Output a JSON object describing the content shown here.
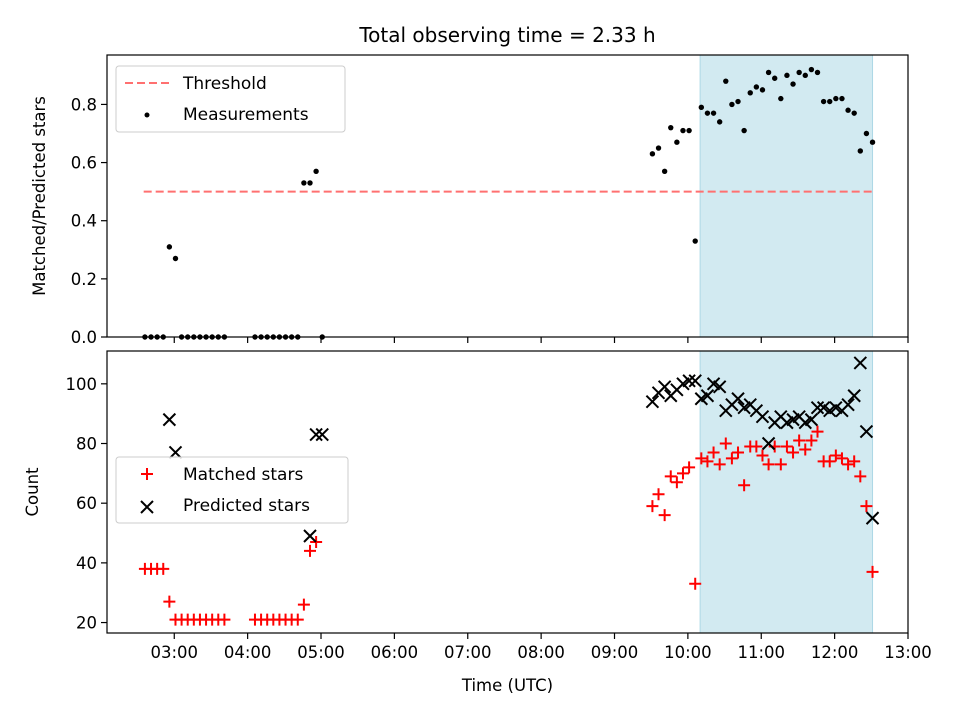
{
  "chart_data": {
    "title": "Total observing time = 2.33 h",
    "colors": {
      "threshold": "#ff7070",
      "measurements": "#000000",
      "matched": "#ff0000",
      "predicted": "#000000",
      "highlight": "#add8e6"
    },
    "xlabel": "Time (UTC)",
    "x_ticks": [
      "03:00",
      "04:00",
      "05:00",
      "06:00",
      "07:00",
      "08:00",
      "09:00",
      "10:00",
      "11:00",
      "12:00",
      "13:00"
    ],
    "xlim": [
      "02:05",
      "13:00"
    ],
    "highlight_span": [
      "10:10",
      "12:31"
    ],
    "panels": [
      {
        "type": "scatter",
        "ylabel": "Matched/Predicted stars",
        "ylim": [
          0,
          0.97
        ],
        "y_ticks": [
          "0.0",
          "0.2",
          "0.4",
          "0.6",
          "0.8"
        ],
        "y_tick_values": [
          0,
          0.2,
          0.4,
          0.6,
          0.8
        ],
        "legend_position": "top-left",
        "legend": [
          "Threshold",
          "Measurements"
        ],
        "series": [
          {
            "name": "Threshold",
            "kind": "dashed-line",
            "x": [
              "02:35",
              "12:31"
            ],
            "y": [
              0.5,
              0.5
            ]
          },
          {
            "name": "Measurements",
            "kind": "dot",
            "x": [
              "02:36",
              "02:41",
              "02:46",
              "02:51",
              "02:56",
              "03:01",
              "03:06",
              "03:11",
              "03:16",
              "03:21",
              "03:26",
              "03:31",
              "03:36",
              "03:41",
              "04:06",
              "04:11",
              "04:16",
              "04:21",
              "04:26",
              "04:31",
              "04:36",
              "04:41",
              "04:46",
              "04:51",
              "04:56",
              "05:01",
              "09:31",
              "09:36",
              "09:41",
              "09:46",
              "09:51",
              "09:56",
              "10:01",
              "10:06",
              "10:11",
              "10:16",
              "10:21",
              "10:26",
              "10:31",
              "10:36",
              "10:41",
              "10:46",
              "10:51",
              "10:56",
              "11:01",
              "11:06",
              "11:11",
              "11:16",
              "11:21",
              "11:26",
              "11:31",
              "11:36",
              "11:41",
              "11:46",
              "11:51",
              "11:56",
              "12:01",
              "12:06",
              "12:11",
              "12:16",
              "12:21",
              "12:26",
              "12:31"
            ],
            "y": [
              0,
              0,
              0,
              0,
              0.31,
              0.27,
              0,
              0,
              0,
              0,
              0,
              0,
              0,
              0,
              0,
              0,
              0,
              0,
              0,
              0,
              0,
              0,
              0.53,
              0.53,
              0.57,
              0,
              0.63,
              0.65,
              0.57,
              0.72,
              0.67,
              0.71,
              0.71,
              0.33,
              0.79,
              0.77,
              0.77,
              0.74,
              0.88,
              0.8,
              0.81,
              0.71,
              0.84,
              0.86,
              0.85,
              0.91,
              0.89,
              0.82,
              0.9,
              0.87,
              0.91,
              0.9,
              0.92,
              0.91,
              0.81,
              0.81,
              0.82,
              0.82,
              0.78,
              0.77,
              0.64,
              0.7,
              0.67
            ]
          }
        ]
      },
      {
        "type": "scatter",
        "ylabel": "Count",
        "ylim": [
          16.5,
          111
        ],
        "y_ticks": [
          "20",
          "40",
          "60",
          "80",
          "100"
        ],
        "y_tick_values": [
          20,
          40,
          60,
          80,
          100
        ],
        "legend_position": "center-left",
        "legend": [
          "Matched stars",
          "Predicted stars"
        ],
        "series": [
          {
            "name": "Matched stars",
            "kind": "plus",
            "x": [
              "02:36",
              "02:41",
              "02:46",
              "02:51",
              "02:56",
              "03:01",
              "03:06",
              "03:11",
              "03:16",
              "03:21",
              "03:26",
              "03:31",
              "03:36",
              "03:41",
              "04:06",
              "04:11",
              "04:16",
              "04:21",
              "04:26",
              "04:31",
              "04:36",
              "04:41",
              "04:46",
              "04:51",
              "04:56",
              "09:31",
              "09:36",
              "09:41",
              "09:46",
              "09:51",
              "09:56",
              "10:01",
              "10:06",
              "10:11",
              "10:16",
              "10:21",
              "10:26",
              "10:31",
              "10:36",
              "10:41",
              "10:46",
              "10:51",
              "10:56",
              "11:01",
              "11:06",
              "11:11",
              "11:16",
              "11:21",
              "11:26",
              "11:31",
              "11:36",
              "11:41",
              "11:46",
              "11:51",
              "11:56",
              "12:01",
              "12:06",
              "12:11",
              "12:16",
              "12:21",
              "12:26",
              "12:31"
            ],
            "y": [
              38,
              38,
              38,
              38,
              27,
              21,
              21,
              21,
              21,
              21,
              21,
              21,
              21,
              21,
              21,
              21,
              21,
              21,
              21,
              21,
              21,
              21,
              26,
              44,
              47,
              59,
              63,
              56,
              69,
              67,
              70,
              72,
              33,
              75,
              74,
              77,
              73,
              80,
              75,
              77,
              66,
              79,
              79,
              76,
              73,
              79,
              73,
              79,
              77,
              81,
              78,
              81,
              84,
              74,
              74,
              76,
              75,
              73,
              74,
              69,
              59,
              37
            ]
          },
          {
            "name": "Predicted stars",
            "kind": "x",
            "x": [
              "02:56",
              "03:01",
              "04:51",
              "04:56",
              "05:01",
              "09:31",
              "09:36",
              "09:41",
              "09:46",
              "09:51",
              "09:56",
              "10:01",
              "10:06",
              "10:11",
              "10:16",
              "10:21",
              "10:26",
              "10:31",
              "10:36",
              "10:41",
              "10:46",
              "10:51",
              "10:56",
              "11:01",
              "11:06",
              "11:11",
              "11:16",
              "11:21",
              "11:26",
              "11:31",
              "11:36",
              "11:41",
              "11:46",
              "11:51",
              "11:56",
              "12:01",
              "12:06",
              "12:11",
              "12:16",
              "12:21",
              "12:26",
              "12:31"
            ],
            "y": [
              88,
              77,
              49,
              83,
              83,
              94,
              97,
              99,
              96,
              98,
              100,
              101,
              101,
              95,
              96,
              100,
              99,
              91,
              93,
              95,
              92,
              93,
              91,
              89,
              80,
              87,
              89,
              87,
              88,
              89,
              87,
              88,
              92,
              92,
              91,
              92,
              91,
              93,
              96,
              107,
              84,
              55
            ]
          }
        ]
      }
    ]
  }
}
